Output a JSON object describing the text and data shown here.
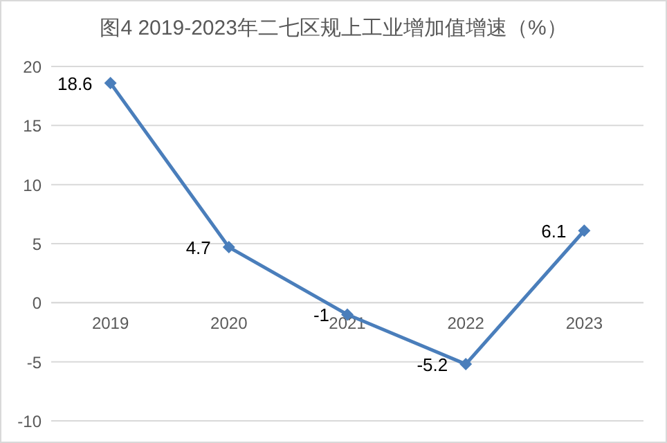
{
  "chart_data": {
    "type": "line",
    "title": "图4 2019-2023年二七区规上工业增加值增速（%）",
    "categories": [
      "2019",
      "2020",
      "2021",
      "2022",
      "2023"
    ],
    "series": [
      {
        "color": "#4a7ebb",
        "values": [
          18.6,
          4.7,
          -1,
          -5.2,
          6.1
        ]
      }
    ],
    "ylim": [
      -10,
      20
    ],
    "yticks": [
      -10,
      -5,
      0,
      5,
      10,
      15,
      20
    ],
    "grid": "y",
    "marker": "diamond",
    "line_style": "solid",
    "data_labels": true
  }
}
